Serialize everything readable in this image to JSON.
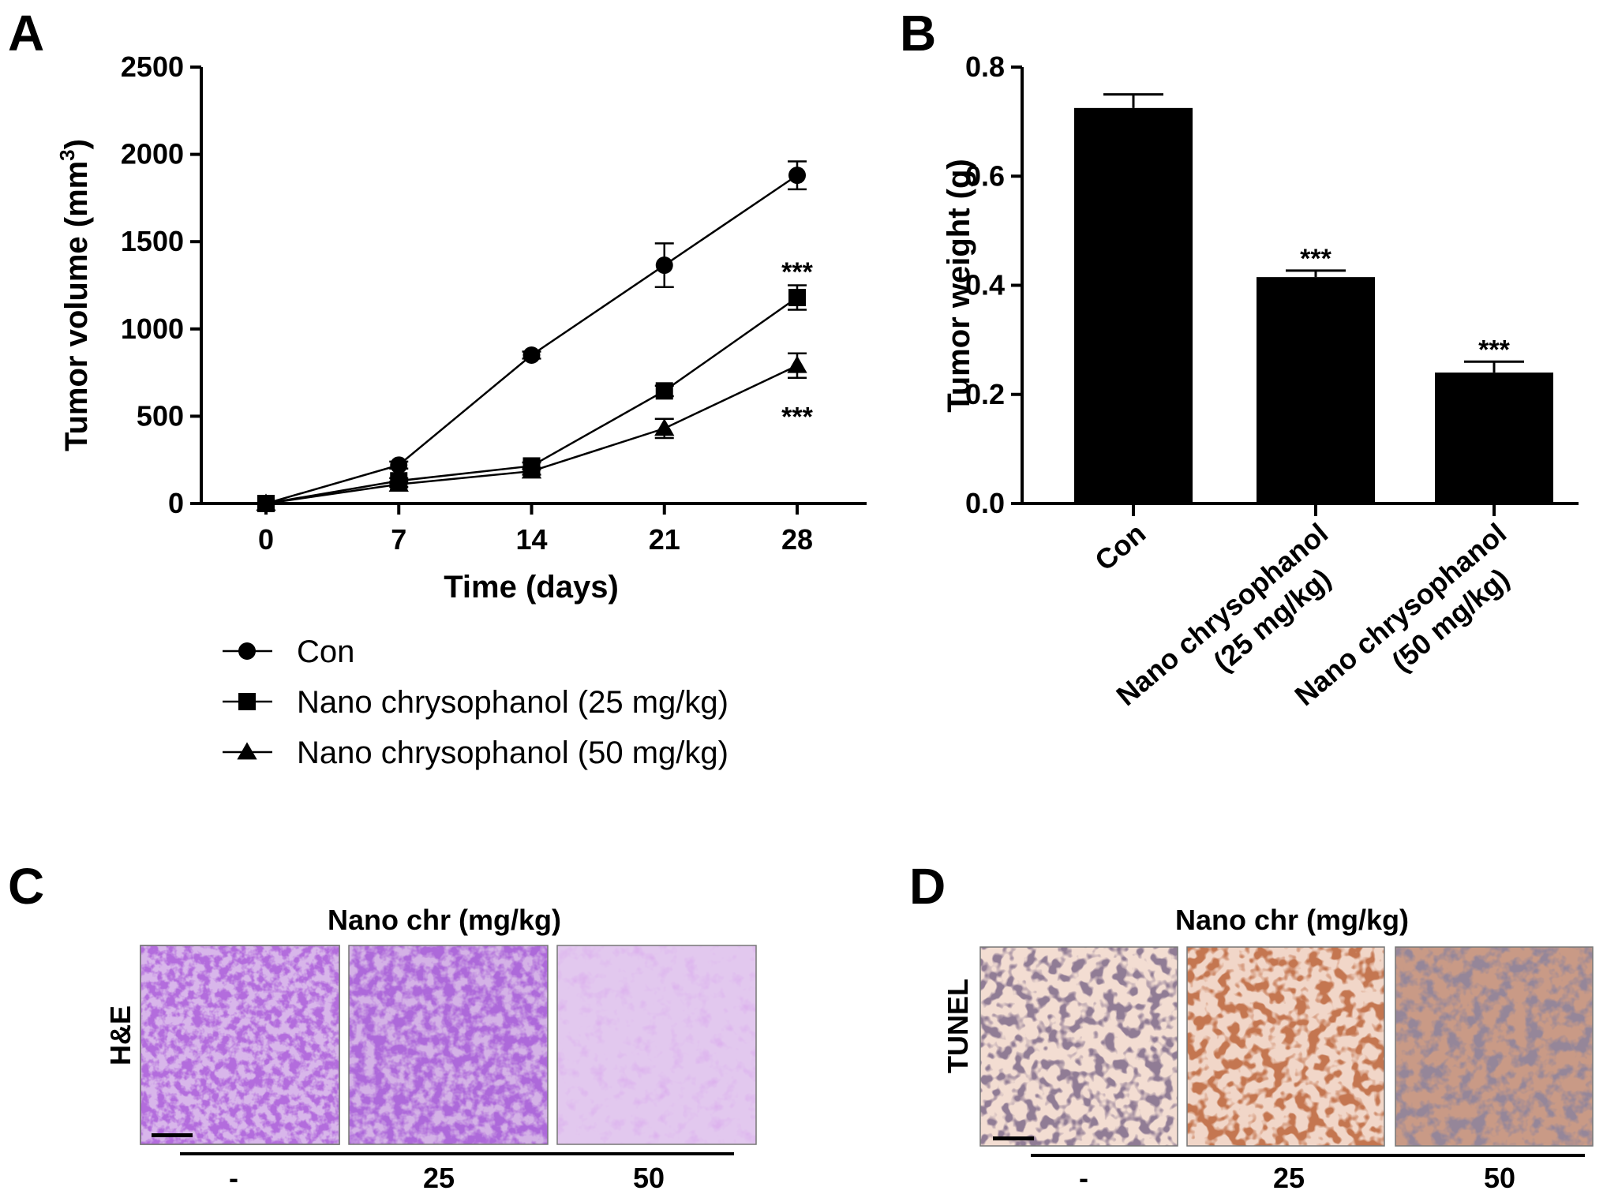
{
  "panels": {
    "A": "A",
    "B": "B",
    "C": "C",
    "D": "D"
  },
  "chart_data": [
    {
      "type": "line",
      "panel": "A",
      "xlabel": "Time (days)",
      "ylabel_base": "Tumor volume (mm",
      "ylabel_sup": "3",
      "ylabel_close": ")",
      "x": [
        0,
        7,
        14,
        21,
        28
      ],
      "x_ticks": [
        "0",
        "7",
        "14",
        "21",
        "28"
      ],
      "ylim": [
        0,
        2500
      ],
      "y_ticks": [
        "0",
        "500",
        "1000",
        "1500",
        "2000",
        "2500"
      ],
      "series": [
        {
          "name": "Con",
          "marker": "circle",
          "values": [
            0,
            220,
            850,
            1365,
            1880
          ],
          "errors": [
            0,
            20,
            20,
            125,
            80
          ]
        },
        {
          "name": "Nano chrysophanol (25 mg/kg)",
          "marker": "square",
          "values": [
            0,
            130,
            215,
            645,
            1180
          ],
          "errors": [
            0,
            15,
            20,
            30,
            70
          ]
        },
        {
          "name": "Nano chrysophanol (50 mg/kg)",
          "marker": "triangle",
          "values": [
            0,
            110,
            185,
            430,
            790
          ],
          "errors": [
            0,
            15,
            20,
            55,
            70
          ]
        }
      ],
      "annotations": [
        {
          "text": "***",
          "x": 28,
          "y": 1330
        },
        {
          "text": "***",
          "x": 28,
          "y": 500
        }
      ],
      "legend": "bottom"
    },
    {
      "type": "bar",
      "panel": "B",
      "ylabel": "Tumor weight (g)",
      "categories": [
        "Con",
        "Nano chrysophanol (25 mg/kg)",
        "Nano chrysophanol (50 mg/kg)"
      ],
      "category_lines": [
        [
          "Con"
        ],
        [
          "Nano chrysophanol",
          "(25 mg/kg)"
        ],
        [
          "Nano chrysophanol",
          "(50 mg/kg)"
        ]
      ],
      "values": [
        0.725,
        0.415,
        0.24
      ],
      "errors": [
        0.025,
        0.012,
        0.02
      ],
      "ylim": [
        0,
        0.8
      ],
      "y_ticks": [
        "0.0",
        "0.2",
        "0.4",
        "0.6",
        "0.8"
      ],
      "annotations": [
        "",
        "***",
        "***"
      ]
    }
  ],
  "histology": {
    "C": {
      "title": "Nano chr (mg/kg)",
      "row_label": "H&E",
      "doses": [
        "-",
        "25",
        "50"
      ]
    },
    "D": {
      "title": "Nano chr (mg/kg)",
      "row_label": "TUNEL",
      "doses": [
        "-",
        "25",
        "50"
      ]
    }
  }
}
